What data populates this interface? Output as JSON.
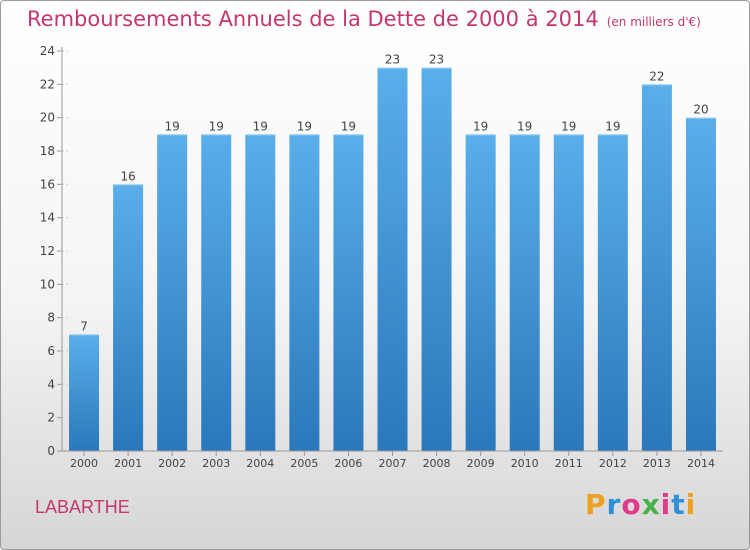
{
  "header": {
    "title": "Remboursements Annuels de la Dette de 2000 à 2014",
    "unit": "(en milliers d'€)"
  },
  "footer": {
    "commune": "LABARTHE",
    "logo_text": "Proxiti",
    "logo_colors": [
      "#f0a020",
      "#2f8fd8",
      "#e03a8a",
      "#49b04a",
      "#e03a8a",
      "#2f8fd8",
      "#f0a020"
    ]
  },
  "chart_data": {
    "type": "bar",
    "categories": [
      "2000",
      "2001",
      "2002",
      "2003",
      "2004",
      "2005",
      "2006",
      "2007",
      "2008",
      "2009",
      "2010",
      "2011",
      "2012",
      "2013",
      "2014"
    ],
    "values": [
      7,
      16,
      19,
      19,
      19,
      19,
      19,
      23,
      23,
      19,
      19,
      19,
      19,
      22,
      20
    ],
    "title": "Remboursements Annuels de la Dette de 2000 à 2014",
    "ylim": [
      0,
      24
    ],
    "yticks": [
      0,
      2,
      4,
      6,
      8,
      10,
      12,
      14,
      16,
      18,
      20,
      22,
      24
    ],
    "grid": false,
    "bar_color_top": "#5aaeea",
    "bar_color_bottom": "#2a78bb"
  }
}
